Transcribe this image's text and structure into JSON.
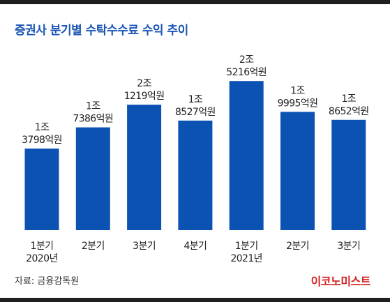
{
  "header": {
    "title": "증권사 분기별 수탁수수료 수익 추이"
  },
  "footer": {
    "source": "자료: 금융감독원",
    "logo": "이코노미스트"
  },
  "colors": {
    "bar": "#0c52b3",
    "title": "#1a55b5",
    "logo": "#d42020"
  },
  "chart_data": {
    "type": "bar",
    "title": "증권사 분기별 수탁수수료 수익 추이",
    "unit": "억원",
    "categories": [
      [
        "1분기",
        "2020년"
      ],
      [
        "2분기"
      ],
      [
        "3분기"
      ],
      [
        "4분기"
      ],
      [
        "1분기",
        "2021년"
      ],
      [
        "2분기"
      ],
      [
        "3분기"
      ]
    ],
    "values": [
      13798,
      17386,
      21219,
      18527,
      25216,
      19995,
      18652
    ],
    "value_labels": [
      [
        "1조",
        "3798억원"
      ],
      [
        "1조",
        "7386억원"
      ],
      [
        "2조",
        "1219억원"
      ],
      [
        "1조",
        "8527억원"
      ],
      [
        "2조",
        "5216억원"
      ],
      [
        "1조",
        "9995억원"
      ],
      [
        "1조",
        "8652억원"
      ]
    ],
    "grid": false,
    "legend": "none"
  }
}
